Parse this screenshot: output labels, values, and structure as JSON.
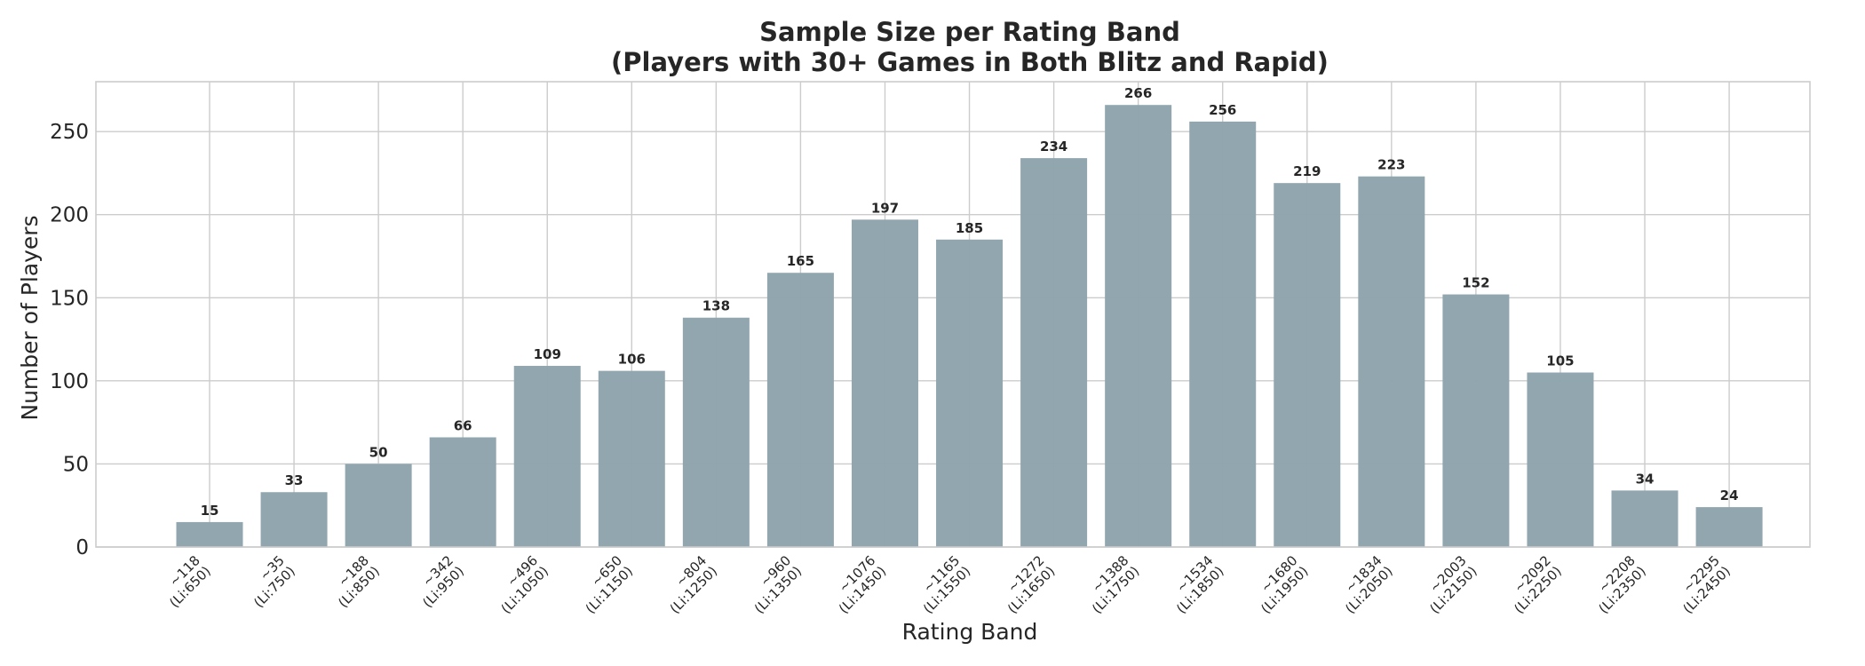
{
  "chart_data": {
    "type": "bar",
    "title_line1": "Sample Size per Rating Band",
    "title_line2": "(Players with 30+ Games in Both Blitz and Rapid)",
    "xlabel": "Rating Band",
    "ylabel": "Number of Players",
    "ylim": [
      0,
      280
    ],
    "yticks": [
      0,
      50,
      100,
      150,
      200,
      250
    ],
    "grid": true,
    "bar_color": "#90a4ae",
    "categories": [
      {
        "line1": "~118",
        "line2": "(Li:650)"
      },
      {
        "line1": "~35",
        "line2": "(Li:750)"
      },
      {
        "line1": "~188",
        "line2": "(Li:850)"
      },
      {
        "line1": "~342",
        "line2": "(Li:950)"
      },
      {
        "line1": "~496",
        "line2": "(Li:1050)"
      },
      {
        "line1": "~650",
        "line2": "(Li:1150)"
      },
      {
        "line1": "~804",
        "line2": "(Li:1250)"
      },
      {
        "line1": "~960",
        "line2": "(Li:1350)"
      },
      {
        "line1": "~1076",
        "line2": "(Li:1450)"
      },
      {
        "line1": "~1165",
        "line2": "(Li:1550)"
      },
      {
        "line1": "~1272",
        "line2": "(Li:1650)"
      },
      {
        "line1": "~1388",
        "line2": "(Li:1750)"
      },
      {
        "line1": "~1534",
        "line2": "(Li:1850)"
      },
      {
        "line1": "~1680",
        "line2": "(Li:1950)"
      },
      {
        "line1": "~1834",
        "line2": "(Li:2050)"
      },
      {
        "line1": "~2003",
        "line2": "(Li:2150)"
      },
      {
        "line1": "~2092",
        "line2": "(Li:2250)"
      },
      {
        "line1": "~2208",
        "line2": "(Li:2350)"
      },
      {
        "line1": "~2295",
        "line2": "(Li:2450)"
      }
    ],
    "values": [
      15,
      33,
      50,
      66,
      109,
      106,
      138,
      165,
      197,
      185,
      234,
      266,
      256,
      219,
      223,
      152,
      105,
      34,
      24
    ]
  }
}
